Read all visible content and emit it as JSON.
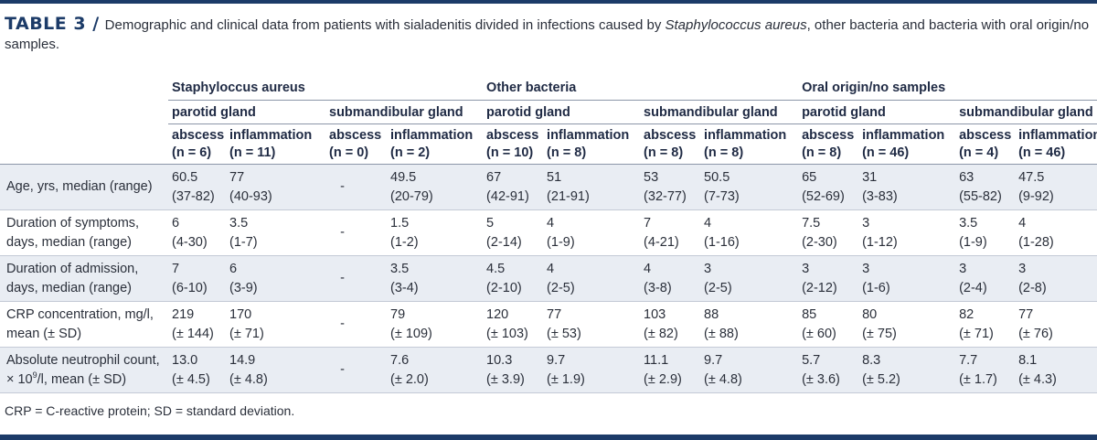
{
  "caption": {
    "label": "TABLE 3 /",
    "text_before": "Demographic and clinical data from patients with sialadenitis divided in infections caused by ",
    "text_italic": "Staphylococcus aureus",
    "text_after": ", other bacteria and bacteria with oral origin/no samples."
  },
  "groups": [
    "Staphyloccus aureus",
    "Other bacteria",
    "Oral origin/no samples"
  ],
  "glands": [
    "parotid gland",
    "submandibular gland",
    "parotid gland",
    "submandibular gland",
    "parotid gland",
    "submandibular gland"
  ],
  "columns": [
    {
      "type": "abscess",
      "n": "(n = 6)"
    },
    {
      "type": "inflammation",
      "n": "(n = 11)"
    },
    {
      "type": "abscess",
      "n": "(n = 0)"
    },
    {
      "type": "inflammation",
      "n": "(n = 2)"
    },
    {
      "type": "abscess",
      "n": "(n = 10)"
    },
    {
      "type": "inflammation",
      "n": "(n = 8)"
    },
    {
      "type": "abscess",
      "n": "(n = 8)"
    },
    {
      "type": "inflammation",
      "n": "(n = 8)"
    },
    {
      "type": "abscess",
      "n": "(n = 8)"
    },
    {
      "type": "inflammation",
      "n": "(n = 46)"
    },
    {
      "type": "abscess",
      "n": "(n = 4)"
    },
    {
      "type": "inflammation",
      "n": "(n = 46)"
    }
  ],
  "rows": [
    {
      "label": [
        "Age, yrs, median (range)",
        ""
      ],
      "cells": [
        [
          "60.5",
          "(37-82)"
        ],
        [
          "77",
          "(40-93)"
        ],
        [
          "-",
          ""
        ],
        [
          "49.5",
          "(20-79)"
        ],
        [
          "67",
          "(42-91)"
        ],
        [
          "51",
          "(21-91)"
        ],
        [
          "53",
          "(32-77)"
        ],
        [
          "50.5",
          "(7-73)"
        ],
        [
          "65",
          "(52-69)"
        ],
        [
          "31",
          "(3-83)"
        ],
        [
          "63",
          "(55-82)"
        ],
        [
          "47.5",
          "(9-92)"
        ]
      ]
    },
    {
      "label": [
        "Duration of symptoms,",
        "days, median (range)"
      ],
      "cells": [
        [
          "6",
          "(4-30)"
        ],
        [
          "3.5",
          "(1-7)"
        ],
        [
          "-",
          ""
        ],
        [
          "1.5",
          "(1-2)"
        ],
        [
          "5",
          "(2-14)"
        ],
        [
          "4",
          "(1-9)"
        ],
        [
          "7",
          "(4-21)"
        ],
        [
          "4",
          "(1-16)"
        ],
        [
          "7.5",
          "(2-30)"
        ],
        [
          "3",
          "(1-12)"
        ],
        [
          "3.5",
          "(1-9)"
        ],
        [
          "4",
          "(1-28)"
        ]
      ]
    },
    {
      "label": [
        "Duration of admission,",
        "days, median (range)"
      ],
      "cells": [
        [
          "7",
          "(6-10)"
        ],
        [
          "6",
          "(3-9)"
        ],
        [
          "-",
          ""
        ],
        [
          "3.5",
          "(3-4)"
        ],
        [
          "4.5",
          "(2-10)"
        ],
        [
          "4",
          "(2-5)"
        ],
        [
          "4",
          "(3-8)"
        ],
        [
          "3",
          "(2-5)"
        ],
        [
          "3",
          "(2-12)"
        ],
        [
          "3",
          "(1-6)"
        ],
        [
          "3",
          "(2-4)"
        ],
        [
          "3",
          "(2-8)"
        ]
      ]
    },
    {
      "label": [
        "CRP concentration, mg/l,",
        "mean (± SD)"
      ],
      "cells": [
        [
          "219",
          "(± 144)"
        ],
        [
          "170",
          "(± 71)"
        ],
        [
          "-",
          ""
        ],
        [
          "79",
          "(± 109)"
        ],
        [
          "120",
          "(± 103)"
        ],
        [
          "77",
          "(± 53)"
        ],
        [
          "103",
          "(± 82)"
        ],
        [
          "88",
          "(± 88)"
        ],
        [
          "85",
          "(± 60)"
        ],
        [
          "80",
          "(± 75)"
        ],
        [
          "82",
          "(± 71)"
        ],
        [
          "77",
          "(± 76)"
        ]
      ]
    },
    {
      "label": [
        "Absolute neutrophil count,",
        "× 10",
        "9",
        "/l, mean (± SD)"
      ],
      "cells": [
        [
          "13.0",
          "(± 4.5)"
        ],
        [
          "14.9",
          "(± 4.8)"
        ],
        [
          "-",
          ""
        ],
        [
          "7.6",
          "(± 2.0)"
        ],
        [
          "10.3",
          "(± 3.9)"
        ],
        [
          "9.7",
          "(± 1.9)"
        ],
        [
          "11.1",
          "(± 2.9)"
        ],
        [
          "9.7",
          "(± 4.8)"
        ],
        [
          "5.7",
          "(± 3.6)"
        ],
        [
          "8.3",
          "(± 5.2)"
        ],
        [
          "7.7",
          "(± 1.7)"
        ],
        [
          "8.1",
          "(± 4.3)"
        ]
      ]
    }
  ],
  "footnote": "CRP = C-reactive protein; SD = standard deviation."
}
